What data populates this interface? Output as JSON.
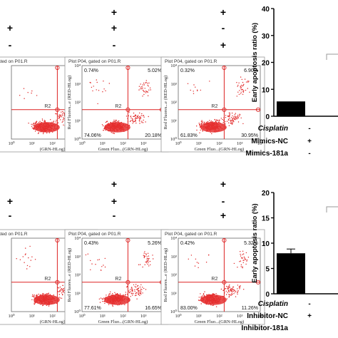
{
  "flow_panels": [
    {
      "row": 0,
      "col": 0,
      "header": "ated on P01.R",
      "ylabel": "",
      "xlabel": "(GRN-HLog)",
      "quadrants": {
        "UL": "",
        "UR": "5.87%",
        "LL": "",
        "LR": "5.46%"
      }
    },
    {
      "row": 0,
      "col": 1,
      "header": "Plot P04, gated on P01.R",
      "ylabel": "Red Fluores...e (RED-HLog)",
      "xlabel": "Green Fluo...(GRN-HLog)",
      "quadrants": {
        "UL": "0.74%",
        "UR": "5.02%",
        "LL": "74.06%",
        "LR": "20.18%"
      }
    },
    {
      "row": 0,
      "col": 2,
      "header": "Plot P04, gated on P01.R",
      "ylabel": "Red Fluores...e (RED-HLog)",
      "xlabel": "Green Fluo...(GRN-HLog)",
      "quadrants": {
        "UL": "0.32%",
        "UR": "6.90%",
        "LL": "61.83%",
        "LR": "30.95%"
      }
    },
    {
      "row": 1,
      "col": 0,
      "header": "ated on P01.R",
      "ylabel": "",
      "xlabel": "(GRN-HLog)",
      "quadrants": {
        "UL": "",
        "UR": "9.75%",
        "LL": "",
        "LR": "7.02%"
      }
    },
    {
      "row": 1,
      "col": 1,
      "header": "Plot P04, gated on P01.R",
      "ylabel": "Red Fluores...e (RED-HLog)",
      "xlabel": "Green Fluo...(GRN-HLog)",
      "quadrants": {
        "UL": "0.43%",
        "UR": "5.26%",
        "LL": "77.61%",
        "LR": "16.65%"
      }
    },
    {
      "row": 1,
      "col": 2,
      "header": "Plot P04, gated on P01.R",
      "ylabel": "Red Fluores...e (RED-HLog)",
      "xlabel": "Green Fluo...(GRN-HLog)",
      "quadrants": {
        "UL": "0.42%",
        "UR": "5.32%",
        "LL": "83.00%",
        "LR": "11.26%"
      }
    }
  ],
  "flow_gate_label": "R2",
  "x_tick_labels": [
    "10⁰",
    "10¹",
    "10²",
    "10³",
    "10⁴"
  ],
  "y_tick_labels": [
    "10⁰",
    "10¹",
    "10²",
    "10³",
    "10⁴"
  ],
  "top_signs": [
    [
      "+",
      "+"
    ],
    [
      "+",
      "+",
      "-"
    ],
    [
      "-",
      "-",
      "+"
    ]
  ],
  "bottom_signs": [
    [
      "+",
      "+"
    ],
    [
      "+",
      "+",
      "-"
    ],
    [
      "-",
      "-",
      "+"
    ]
  ],
  "chart_data": [
    {
      "type": "bar",
      "ylabel": "Early apoptosis ratio (%)",
      "ylim": [
        0,
        40
      ],
      "yticks": [
        "0",
        "10",
        "20",
        "30",
        "40"
      ],
      "row_labels": [
        "Cisplatin",
        "Mimics-NC",
        "Mimics-181a"
      ],
      "signs": [
        "-",
        "+",
        "-"
      ],
      "values": [
        5.5
      ]
    },
    {
      "type": "bar",
      "ylabel": "Early apoptosis ratio (%)",
      "ylim": [
        0,
        20
      ],
      "yticks": [
        "0",
        "5",
        "10",
        "15",
        "20"
      ],
      "row_labels": [
        "Cisplatin",
        "Inhibitor-NC",
        "Inhibitor-181a"
      ],
      "signs": [
        "-",
        "+",
        ""
      ],
      "values": [
        8
      ]
    }
  ]
}
